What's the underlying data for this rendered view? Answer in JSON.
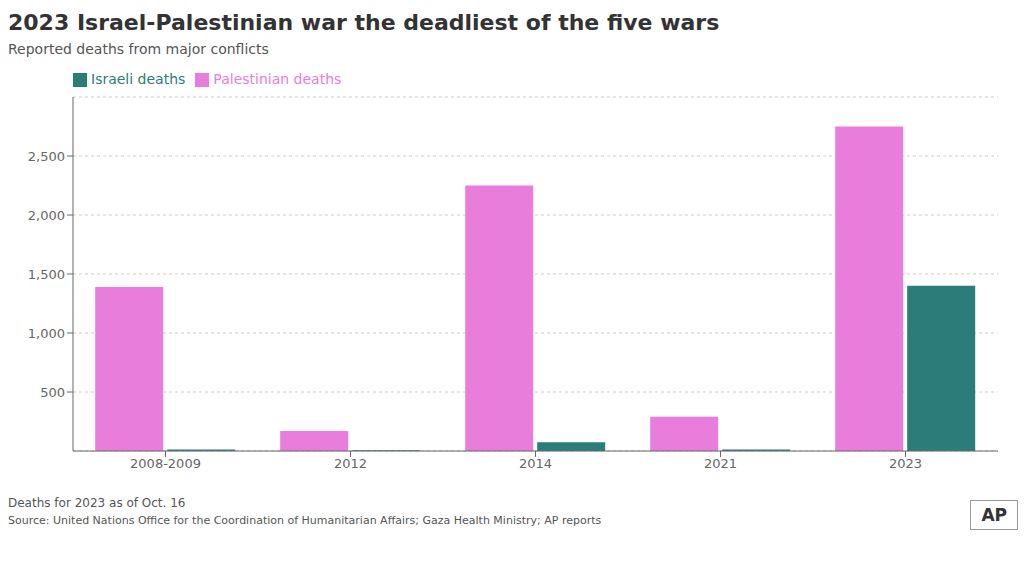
{
  "chart_data": {
    "type": "bar",
    "title": "2023 Israel-Palestinian war the deadliest of the five wars",
    "subtitle": "Reported deaths from major conflicts",
    "categories": [
      "2008-2009",
      "2012",
      "2014",
      "2021",
      "2023"
    ],
    "series": [
      {
        "name": "Palestinian deaths",
        "color": "#e87ddc",
        "values": [
          1390,
          170,
          2250,
          290,
          2750
        ]
      },
      {
        "name": "Israeli deaths",
        "color": "#2a7d78",
        "values": [
          13,
          6,
          75,
          13,
          1400
        ]
      }
    ],
    "ylim": [
      0,
      3000
    ],
    "yticks": [
      500,
      {
        "value": 1000,
        "label": "1,000"
      },
      {
        "value": 1500,
        "label": "1,500"
      },
      {
        "value": 2000,
        "label": "2,000"
      },
      {
        "value": 2500,
        "label": "2,500"
      }
    ],
    "grid": true,
    "legend": "upper left",
    "annotations": [
      "Deaths for 2023 as of Oct. 16",
      "Source: United Nations Office for the Coordination of Humanitarian Affairs; Gaza Health Ministry; AP reports",
      "AP"
    ]
  }
}
